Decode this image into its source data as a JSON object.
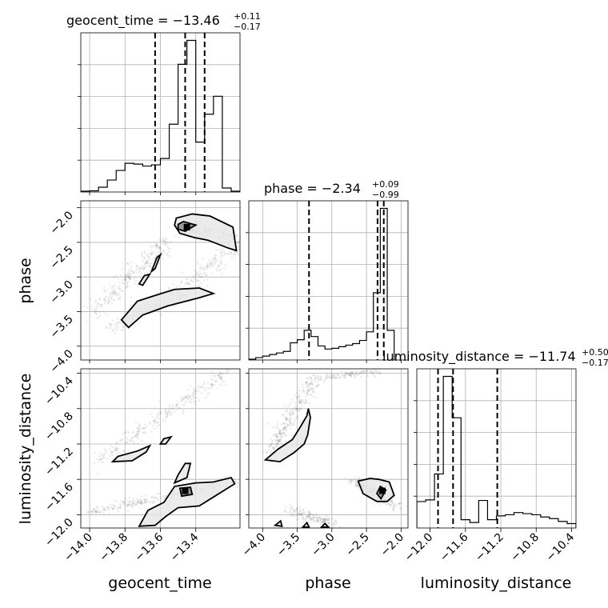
{
  "chart_data": {
    "type": "scatter",
    "parameters": [
      "geocent_time",
      "phase",
      "luminosity_distance"
    ],
    "axes": {
      "geocent_time": {
        "label": "geocent_time",
        "range": [
          -14.05,
          -13.15
        ],
        "ticks": [
          -14.0,
          -13.8,
          -13.6,
          -13.4
        ],
        "tick_labels": [
          "−14.0",
          "−13.8",
          "−13.6",
          "−13.4"
        ]
      },
      "phase": {
        "label": "phase",
        "range": [
          -4.2,
          -1.9
        ],
        "ticks": [
          -4.0,
          -3.5,
          -3.0,
          -2.5,
          -2.0
        ],
        "tick_labels": [
          "−4.0",
          "−3.5",
          "−3.0",
          "−2.5",
          "−2.0"
        ]
      },
      "luminosity_distance": {
        "label": "luminosity_distance",
        "range": [
          -12.15,
          -10.35
        ],
        "ticks": [
          -12.0,
          -11.6,
          -11.2,
          -10.8,
          -10.4
        ],
        "tick_labels": [
          "−12.0",
          "−11.6",
          "−11.2",
          "−10.8",
          "−10.4"
        ]
      }
    },
    "marginals": [
      {
        "parameter": "geocent_time",
        "title_main": "geocent_time = −13.46",
        "title_upper": "+0.11",
        "title_lower": "−0.17",
        "quantiles": [
          -13.63,
          -13.46,
          -13.35
        ],
        "bin_edges": [
          -14.05,
          -14.0,
          -13.95,
          -13.9,
          -13.85,
          -13.8,
          -13.75,
          -13.7,
          -13.65,
          -13.6,
          -13.55,
          -13.5,
          -13.45,
          -13.4,
          -13.35,
          -13.3,
          -13.25,
          -13.2,
          -13.15
        ],
        "counts": [
          0.2,
          0.3,
          1.2,
          3.0,
          5.4,
          7.2,
          7.0,
          6.5,
          6.8,
          8.4,
          17.0,
          32.0,
          38.0,
          12.5,
          19.5,
          24.0,
          1.0,
          0.2
        ]
      },
      {
        "parameter": "phase",
        "title_main": "phase = −2.34",
        "title_upper": "+0.09",
        "title_lower": "−0.99",
        "quantiles": [
          -3.33,
          -2.34,
          -2.25
        ],
        "bin_edges": [
          -4.2,
          -4.1,
          -4.0,
          -3.9,
          -3.8,
          -3.7,
          -3.6,
          -3.5,
          -3.4,
          -3.3,
          -3.2,
          -3.1,
          -3.0,
          -2.9,
          -2.8,
          -2.7,
          -2.6,
          -2.5,
          -2.4,
          -2.3,
          -2.2,
          -2.1
        ],
        "counts": [
          0.5,
          1.5,
          2.5,
          3.5,
          4.5,
          5.5,
          11.0,
          13.0,
          19.0,
          15.0,
          9.0,
          7.0,
          7.5,
          8.5,
          9.5,
          10.5,
          12.5,
          18.0,
          43.0,
          97.0,
          19.0
        ]
      },
      {
        "parameter": "luminosity_distance",
        "title_main": "luminosity_distance = −11.74",
        "title_upper": "+0.50",
        "title_lower": "−0.17",
        "quantiles": [
          -11.91,
          -11.74,
          -11.24
        ],
        "bin_edges": [
          -12.15,
          -12.05,
          -11.95,
          -11.85,
          -11.75,
          -11.65,
          -11.55,
          -11.45,
          -11.35,
          -11.25,
          -11.15,
          -11.05,
          -10.95,
          -10.85,
          -10.75,
          -10.65,
          -10.55,
          -10.45,
          -10.35
        ],
        "counts": [
          4.8,
          5.1,
          9.8,
          27.5,
          20.0,
          1.5,
          1.0,
          5.0,
          1.5,
          2.2,
          2.4,
          2.8,
          2.6,
          2.4,
          2.0,
          1.7,
          1.2,
          0.8
        ]
      }
    ],
    "pairs": [
      {
        "x": "geocent_time",
        "y": "phase",
        "peak": [
          -13.45,
          -2.28
        ],
        "ridges": [
          {
            "from": [
              -13.98,
              -3.5
            ],
            "to": [
              -13.56,
              -2.5
            ],
            "spread": [
              0.06,
              0.12
            ],
            "n": 260
          },
          {
            "from": [
              -13.9,
              -3.75
            ],
            "to": [
              -13.45,
              -3.25
            ],
            "spread": [
              0.05,
              0.1
            ],
            "n": 150
          },
          {
            "from": [
              -13.55,
              -3.3
            ],
            "to": [
              -13.15,
              -2.5
            ],
            "spread": [
              0.06,
              0.14
            ],
            "n": 200
          },
          {
            "from": [
              -13.5,
              -2.3
            ],
            "to": [
              -13.2,
              -2.4
            ],
            "spread": [
              0.06,
              0.1
            ],
            "n": 160
          }
        ],
        "contours_outer": [
          [
            [
              -13.51,
              -2.15
            ],
            [
              -13.42,
              -2.09
            ],
            [
              -13.32,
              -2.12
            ],
            [
              -13.19,
              -2.28
            ],
            [
              -13.17,
              -2.62
            ],
            [
              -13.22,
              -2.58
            ],
            [
              -13.33,
              -2.47
            ],
            [
              -13.41,
              -2.43
            ],
            [
              -13.49,
              -2.37
            ],
            [
              -13.52,
              -2.25
            ]
          ],
          [
            [
              -13.73,
              -3.35
            ],
            [
              -13.62,
              -3.26
            ],
            [
              -13.52,
              -3.18
            ],
            [
              -13.38,
              -3.16
            ],
            [
              -13.3,
              -3.24
            ],
            [
              -13.38,
              -3.3
            ],
            [
              -13.56,
              -3.42
            ],
            [
              -13.7,
              -3.55
            ],
            [
              -13.78,
              -3.73
            ],
            [
              -13.82,
              -3.62
            ]
          ],
          [
            [
              -13.62,
              -2.72
            ],
            [
              -13.6,
              -2.68
            ],
            [
              -13.63,
              -2.88
            ],
            [
              -13.65,
              -2.92
            ]
          ],
          [
            [
              -13.69,
              -2.98
            ],
            [
              -13.66,
              -2.96
            ],
            [
              -13.7,
              -3.12
            ],
            [
              -13.72,
              -3.1
            ]
          ]
        ],
        "contours_inner": [
          [
            [
              -13.5,
              -2.24
            ],
            [
              -13.47,
              -2.2
            ],
            [
              -13.4,
              -2.25
            ],
            [
              -13.46,
              -2.34
            ],
            [
              -13.5,
              -2.31
            ]
          ]
        ]
      },
      {
        "x": "geocent_time",
        "y": "luminosity_distance",
        "peak": [
          -13.46,
          -11.73
        ],
        "ridges": [
          {
            "from": [
              -13.95,
              -11.38
            ],
            "to": [
              -13.22,
              -10.38
            ],
            "spread": [
              0.04,
              0.09
            ],
            "n": 280
          },
          {
            "from": [
              -14.0,
              -11.98
            ],
            "to": [
              -13.15,
              -11.62
            ],
            "spread": [
              0.07,
              0.05
            ],
            "n": 260
          }
        ],
        "contours_outer": [
          [
            [
              -13.84,
              -11.34
            ],
            [
              -13.73,
              -11.28
            ],
            [
              -13.66,
              -11.22
            ],
            [
              -13.68,
              -11.29
            ],
            [
              -13.76,
              -11.39
            ],
            [
              -13.87,
              -11.4
            ]
          ],
          [
            [
              -13.5,
              -11.55
            ],
            [
              -13.46,
              -11.42
            ],
            [
              -13.43,
              -11.42
            ],
            [
              -13.45,
              -11.58
            ],
            [
              -13.52,
              -11.64
            ]
          ],
          [
            [
              -13.58,
              -11.14
            ],
            [
              -13.54,
              -11.12
            ],
            [
              -13.57,
              -11.2
            ],
            [
              -13.6,
              -11.2
            ]
          ],
          [
            [
              -13.52,
              -11.68
            ],
            [
              -13.4,
              -11.64
            ],
            [
              -13.3,
              -11.63
            ],
            [
              -13.2,
              -11.58
            ],
            [
              -13.18,
              -11.65
            ],
            [
              -13.3,
              -11.8
            ],
            [
              -13.38,
              -11.9
            ],
            [
              -13.5,
              -11.92
            ],
            [
              -13.57,
              -12.02
            ],
            [
              -13.63,
              -12.12
            ],
            [
              -13.72,
              -12.13
            ],
            [
              -13.67,
              -11.95
            ],
            [
              -13.58,
              -11.86
            ]
          ]
        ],
        "contours_inner": [
          [
            [
              -13.49,
              -11.7
            ],
            [
              -13.43,
              -11.69
            ],
            [
              -13.42,
              -11.77
            ],
            [
              -13.48,
              -11.79
            ]
          ]
        ]
      },
      {
        "x": "phase",
        "y": "luminosity_distance",
        "peak": [
          -2.27,
          -11.73
        ],
        "ridges": [
          {
            "from": [
              -3.9,
              -11.3
            ],
            "to": [
              -3.25,
              -10.45
            ],
            "spread": [
              0.1,
              0.12
            ],
            "n": 280
          },
          {
            "from": [
              -3.2,
              -10.45
            ],
            "to": [
              -2.3,
              -10.38
            ],
            "spread": [
              0.1,
              0.04
            ],
            "n": 120
          },
          {
            "from": [
              -3.6,
              -11.95
            ],
            "to": [
              -3.0,
              -12.1
            ],
            "spread": [
              0.15,
              0.05
            ],
            "n": 160
          },
          {
            "from": [
              -2.7,
              -11.62
            ],
            "to": [
              -2.05,
              -11.9
            ],
            "spread": [
              0.1,
              0.07
            ],
            "n": 200
          }
        ],
        "contours_outer": [
          [
            [
              -3.34,
              -10.8
            ],
            [
              -3.31,
              -10.9
            ],
            [
              -3.35,
              -11.1
            ],
            [
              -3.4,
              -11.2
            ],
            [
              -3.55,
              -11.3
            ],
            [
              -3.75,
              -11.4
            ],
            [
              -3.96,
              -11.38
            ],
            [
              -3.78,
              -11.26
            ],
            [
              -3.57,
              -11.15
            ],
            [
              -3.45,
              -11.0
            ],
            [
              -3.36,
              -10.88
            ]
          ],
          [
            [
              -2.62,
              -11.62
            ],
            [
              -2.45,
              -11.59
            ],
            [
              -2.32,
              -11.6
            ],
            [
              -2.17,
              -11.63
            ],
            [
              -2.1,
              -11.78
            ],
            [
              -2.2,
              -11.85
            ],
            [
              -2.35,
              -11.85
            ],
            [
              -2.55,
              -11.76
            ]
          ],
          [
            [
              -3.82,
              -12.12
            ],
            [
              -3.74,
              -12.07
            ],
            [
              -3.72,
              -12.13
            ]
          ],
          [
            [
              -3.42,
              -12.14
            ],
            [
              -3.36,
              -12.09
            ],
            [
              -3.33,
              -12.14
            ]
          ],
          [
            [
              -3.15,
              -12.14
            ],
            [
              -3.1,
              -12.1
            ],
            [
              -3.05,
              -12.14
            ]
          ]
        ],
        "contours_inner": [
          [
            [
              -2.3,
              -11.68
            ],
            [
              -2.22,
              -11.72
            ],
            [
              -2.29,
              -11.82
            ],
            [
              -2.35,
              -11.76
            ]
          ]
        ]
      }
    ]
  }
}
